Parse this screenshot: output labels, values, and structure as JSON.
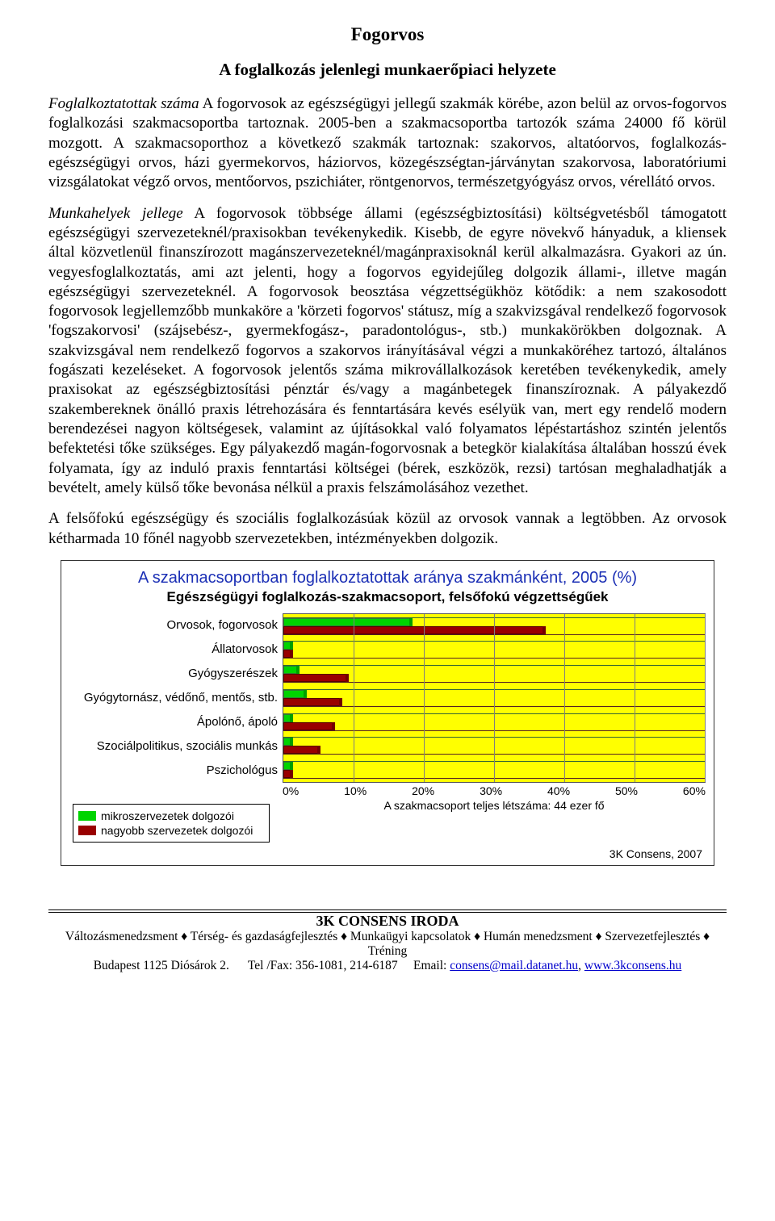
{
  "doc": {
    "title": "Fogorvos",
    "subtitle": "A foglalkozás jelenlegi munkaerőpiaci helyzete",
    "p1_lead": "Foglalkoztatottak száma",
    "p1_body": " A fogorvosok az egészségügyi jellegű szakmák körébe, azon belül az orvos-fogorvos foglalkozási szakmacsoportba tartoznak. 2005-ben a szakmacsoportba tartozók száma 24000 fő körül mozgott. A szakmacsoporthoz a következő szakmák tartoznak: szakorvos, altatóorvos, foglalkozás-egészségügyi orvos, házi gyermekorvos, háziorvos, közegészségtan-járványtan szakorvosa, laboratóriumi vizsgálatokat végző orvos, mentőorvos, pszichiáter, röntgenorvos, természetgyógyász orvos, vérellátó orvos.",
    "p2_lead": "Munkahelyek jellege",
    "p2_body": " A fogorvosok többsége állami (egészségbiztosítási) költségvetésből támogatott egészségügyi szervezeteknél/praxisokban tevékenykedik. Kisebb, de egyre növekvő hányaduk, a kliensek által közvetlenül finanszírozott magánszervezeteknél/magánpraxisoknál kerül alkalmazásra. Gyakori az ún. vegyesfoglalkoztatás, ami azt jelenti, hogy a fogorvos egyidejűleg dolgozik állami-, illetve magán egészségügyi szervezeteknél. A fogorvosok beosztása végzettségükhöz kötődik: a nem szakosodott fogorvosok legjellemzőbb munkaköre a 'körzeti fogorvos' státusz, míg a szakvizsgával rendelkező fogorvosok 'fogszakorvosi' (szájsebész-, gyermekfogász-, paradontológus-, stb.) munkakörökben dolgoznak. A szakvizsgával nem rendelkező fogorvos a szakorvos irányításával végzi a munkaköréhez tartozó, általános fogászati kezeléseket. A fogorvosok jelentős száma mikrovállalkozások keretében tevékenykedik, amely praxisokat az egészségbiztosítási pénztár és/vagy a magánbetegek finanszíroznak. A pályakezdő szakembereknek önálló praxis létrehozására és fenntartására kevés esélyük van, mert egy rendelő modern berendezései nagyon költségesek, valamint az újításokkal való folyamatos lépéstartáshoz szintén jelentős befektetési tőke szükséges. Egy pályakezdő magán-fogorvosnak a betegkör kialakítása általában hosszú évek folyamata, így az induló praxis fenntartási költségei (bérek, eszközök, rezsi) tartósan meghaladhatják a bevételt, amely külső tőke bevonása nélkül a praxis felszámolásához vezethet.",
    "p3": "A felsőfokú egészségügy és szociális foglalkozásúak közül az orvosok vannak a legtöbben. Az orvosok kétharmada 10 főnél nagyobb szervezetekben, intézményekben dolgozik."
  },
  "chart": {
    "title": "A szakmacsoportban foglalkoztatottak aránya szakmánként, 2005 (%)",
    "subtitle": "Egészségügyi foglalkozás-szakmacsoport, felsőfokú végzettségűek",
    "type": "grouped-horizontal-bar",
    "background_color": "#ffff00",
    "grid_color": "#808080",
    "xmax_pct": 60,
    "xtick_step": 10,
    "xtick_labels": [
      "0%",
      "10%",
      "20%",
      "30%",
      "40%",
      "50%",
      "60%"
    ],
    "categories": [
      "Orvosok, fogorvosok",
      "Állatorvosok",
      "Gyógyszerészek",
      "Gyógytornász, védőnő, mentős, stb.",
      "Ápolónő, ápoló",
      "Szociálpolitikus, szociális munkás",
      "Pszichológus"
    ],
    "series": [
      {
        "name": "mikroszervezetek dolgozói",
        "color": "#00d400",
        "values": [
          18,
          1,
          2,
          3,
          1,
          1,
          1
        ]
      },
      {
        "name": "nagyobb szervezetek dolgozói",
        "color": "#990000",
        "values": [
          37,
          1,
          9,
          8,
          7,
          5,
          1
        ]
      }
    ],
    "xnote": "A szakmacsoport teljes létszáma: 44 ezer fő",
    "credit": "3K Consens, 2007"
  },
  "footer": {
    "org": "3K CONSENS IRODA",
    "services": [
      "Változásmenedzsment",
      "Térség- és gazdaságfejlesztés",
      "Munkaügyi kapcsolatok",
      "Humán menedzsment",
      "Szervezetfejlesztés",
      "Tréning"
    ],
    "address": "Budapest 1125 Diósárok 2.",
    "phone": "Tel /Fax: 356-1081, 214-6187",
    "email_label": "Email: ",
    "email": "consens@mail.datanet.hu",
    "web": "www.3kconsens.hu"
  }
}
